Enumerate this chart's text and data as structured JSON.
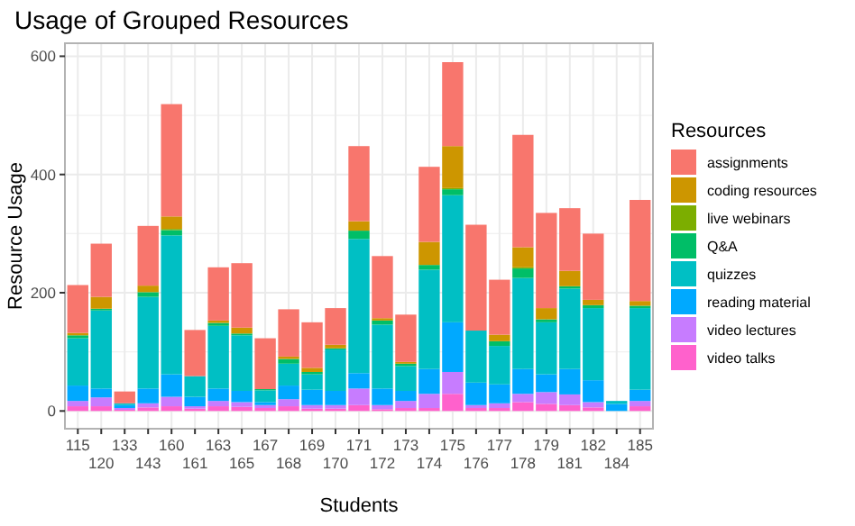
{
  "chart_data": {
    "type": "bar",
    "title": "Usage of Grouped Resources",
    "xlabel": "Students",
    "ylabel": "Resource Usage",
    "legend_title": "Resources",
    "stacked": true,
    "grid": true,
    "legend": "right",
    "categories": [
      "115",
      "120",
      "133",
      "143",
      "160",
      "161",
      "163",
      "165",
      "167",
      "168",
      "169",
      "170",
      "171",
      "172",
      "173",
      "174",
      "175",
      "176",
      "177",
      "178",
      "179",
      "181",
      "182",
      "184",
      "185"
    ],
    "ylim": [
      -30,
      622
    ],
    "yticks": [
      0,
      200,
      400,
      600
    ],
    "series": [
      {
        "name": "video talks",
        "color": "#ff61cc",
        "values": [
          8,
          8,
          2,
          6,
          8,
          4,
          8,
          7,
          5,
          8,
          4,
          4,
          10,
          3,
          5,
          5,
          29,
          5,
          5,
          15,
          12,
          10,
          6,
          0,
          8
        ]
      },
      {
        "name": "video lectures",
        "color": "#c77cff",
        "values": [
          9,
          15,
          3,
          7,
          16,
          4,
          9,
          8,
          5,
          12,
          6,
          6,
          28,
          7,
          12,
          24,
          37,
          5,
          8,
          14,
          20,
          18,
          9,
          0,
          9
        ]
      },
      {
        "name": "reading material",
        "color": "#00a9ff",
        "values": [
          26,
          15,
          5,
          25,
          38,
          16,
          21,
          19,
          5,
          23,
          26,
          24,
          26,
          28,
          17,
          42,
          84,
          38,
          32,
          42,
          30,
          43,
          37,
          12,
          19
        ]
      },
      {
        "name": "quizzes",
        "color": "#00bfc4",
        "values": [
          80,
          132,
          3,
          155,
          235,
          35,
          106,
          94,
          20,
          37,
          26,
          70,
          227,
          108,
          42,
          168,
          215,
          88,
          65,
          154,
          88,
          136,
          122,
          5,
          138
        ]
      },
      {
        "name": "Q&A",
        "color": "#00be67",
        "values": [
          5,
          3,
          0,
          8,
          9,
          0,
          5,
          3,
          2,
          8,
          4,
          2,
          14,
          7,
          4,
          8,
          10,
          0,
          8,
          16,
          5,
          4,
          5,
          0,
          4
        ]
      },
      {
        "name": "live webinars",
        "color": "#7cae00",
        "values": [
          0,
          0,
          0,
          0,
          2,
          0,
          0,
          0,
          0,
          0,
          0,
          0,
          0,
          0,
          0,
          0,
          2,
          0,
          0,
          2,
          0,
          0,
          0,
          0,
          0
        ]
      },
      {
        "name": "coding resources",
        "color": "#cd9600",
        "values": [
          4,
          20,
          0,
          11,
          21,
          0,
          4,
          10,
          0,
          4,
          7,
          6,
          16,
          4,
          3,
          39,
          71,
          0,
          11,
          34,
          19,
          26,
          9,
          0,
          8
        ]
      },
      {
        "name": "assignments",
        "color": "#f8766d",
        "values": [
          81,
          90,
          20,
          101,
          190,
          78,
          90,
          109,
          86,
          80,
          77,
          62,
          127,
          105,
          80,
          127,
          142,
          179,
          93,
          190,
          161,
          106,
          112,
          0,
          171
        ]
      }
    ]
  }
}
